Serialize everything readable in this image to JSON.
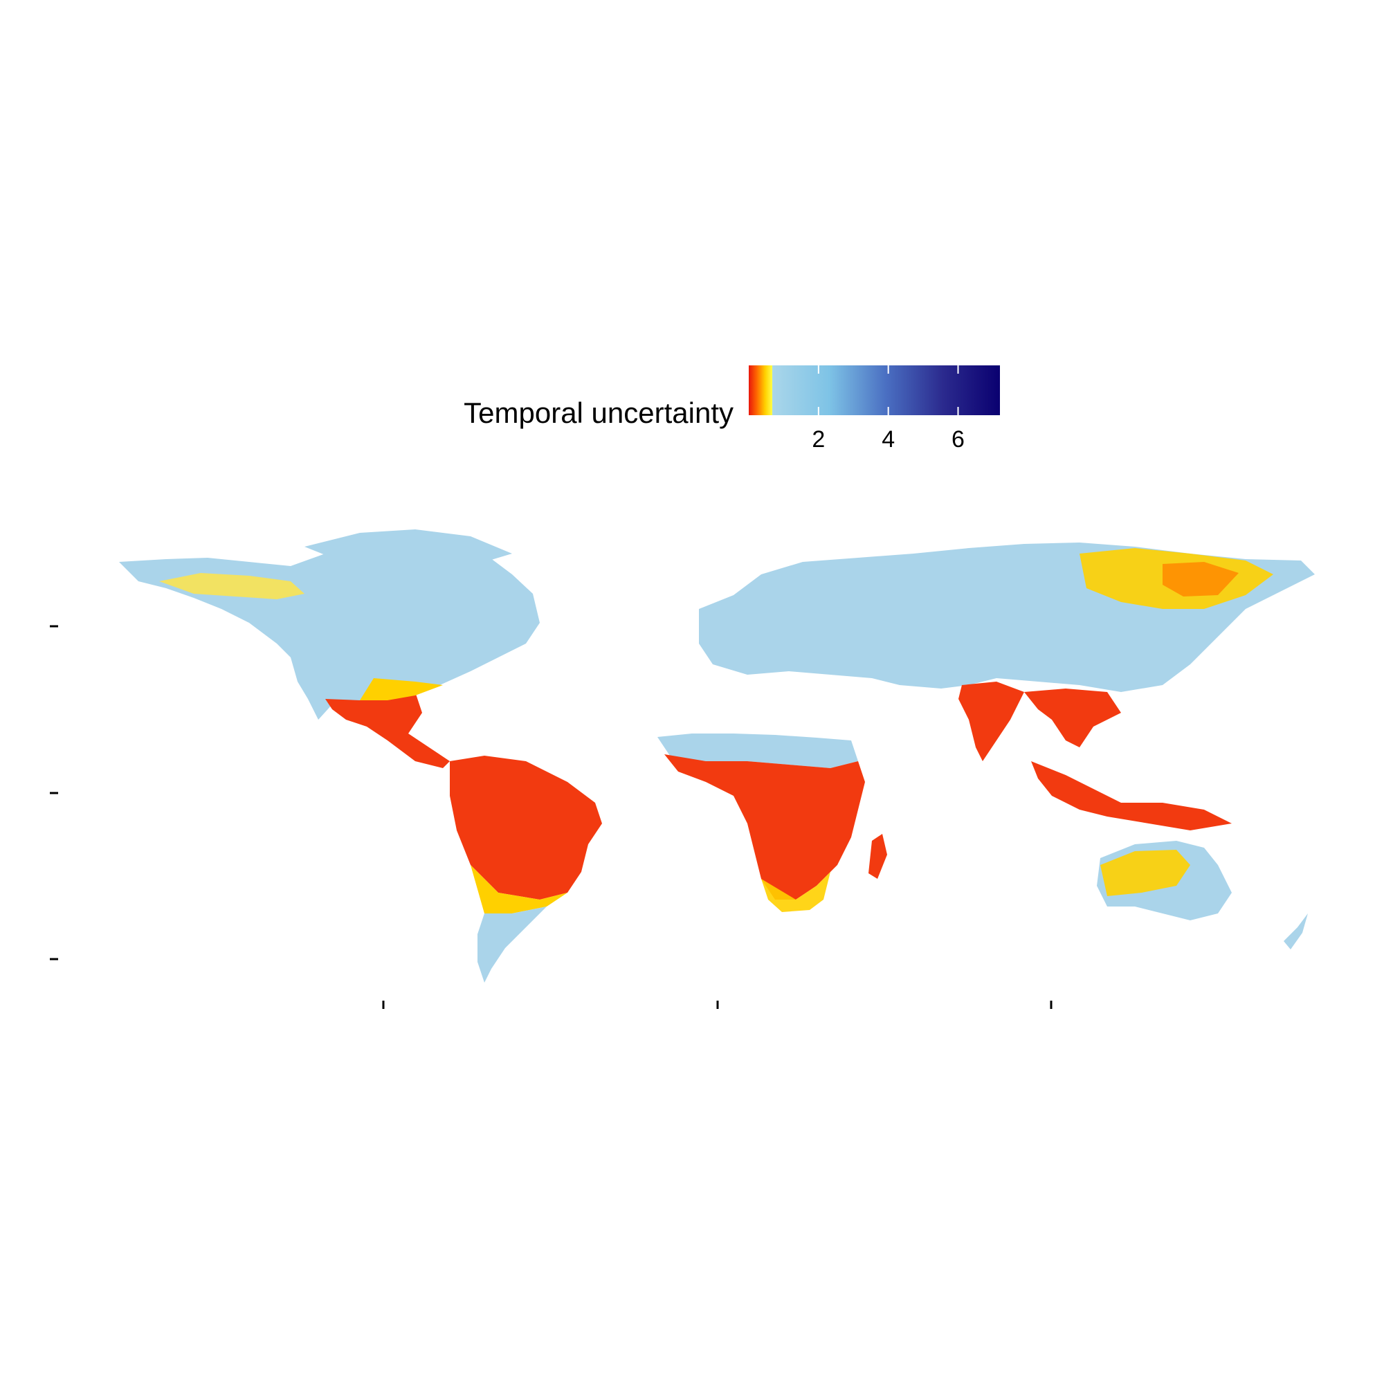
{
  "legend": {
    "title": "Temporal uncertainty",
    "ticks": [
      {
        "value": 2,
        "label": "2"
      },
      {
        "value": 4,
        "label": "4"
      },
      {
        "value": 6,
        "label": "6"
      }
    ],
    "range": [
      0,
      7.2
    ],
    "colors": {
      "low_stops": [
        "#e8170c",
        "#ff6a00",
        "#ffd000",
        "#ffff4a"
      ],
      "high_stops": [
        "#aad6ea",
        "#7ec3e6",
        "#4a6fc2",
        "#2b2a8e",
        "#0a0070"
      ]
    }
  },
  "map": {
    "type": "raster-world-map",
    "colors": {
      "land_low": "#aad4ea",
      "yellow": "#ffe44a",
      "orange": "#ff8a00",
      "red": "#f23a10",
      "blue_high": "#5a78c8"
    }
  },
  "axes": {
    "x_tick_count": 3,
    "y_tick_count": 3
  }
}
